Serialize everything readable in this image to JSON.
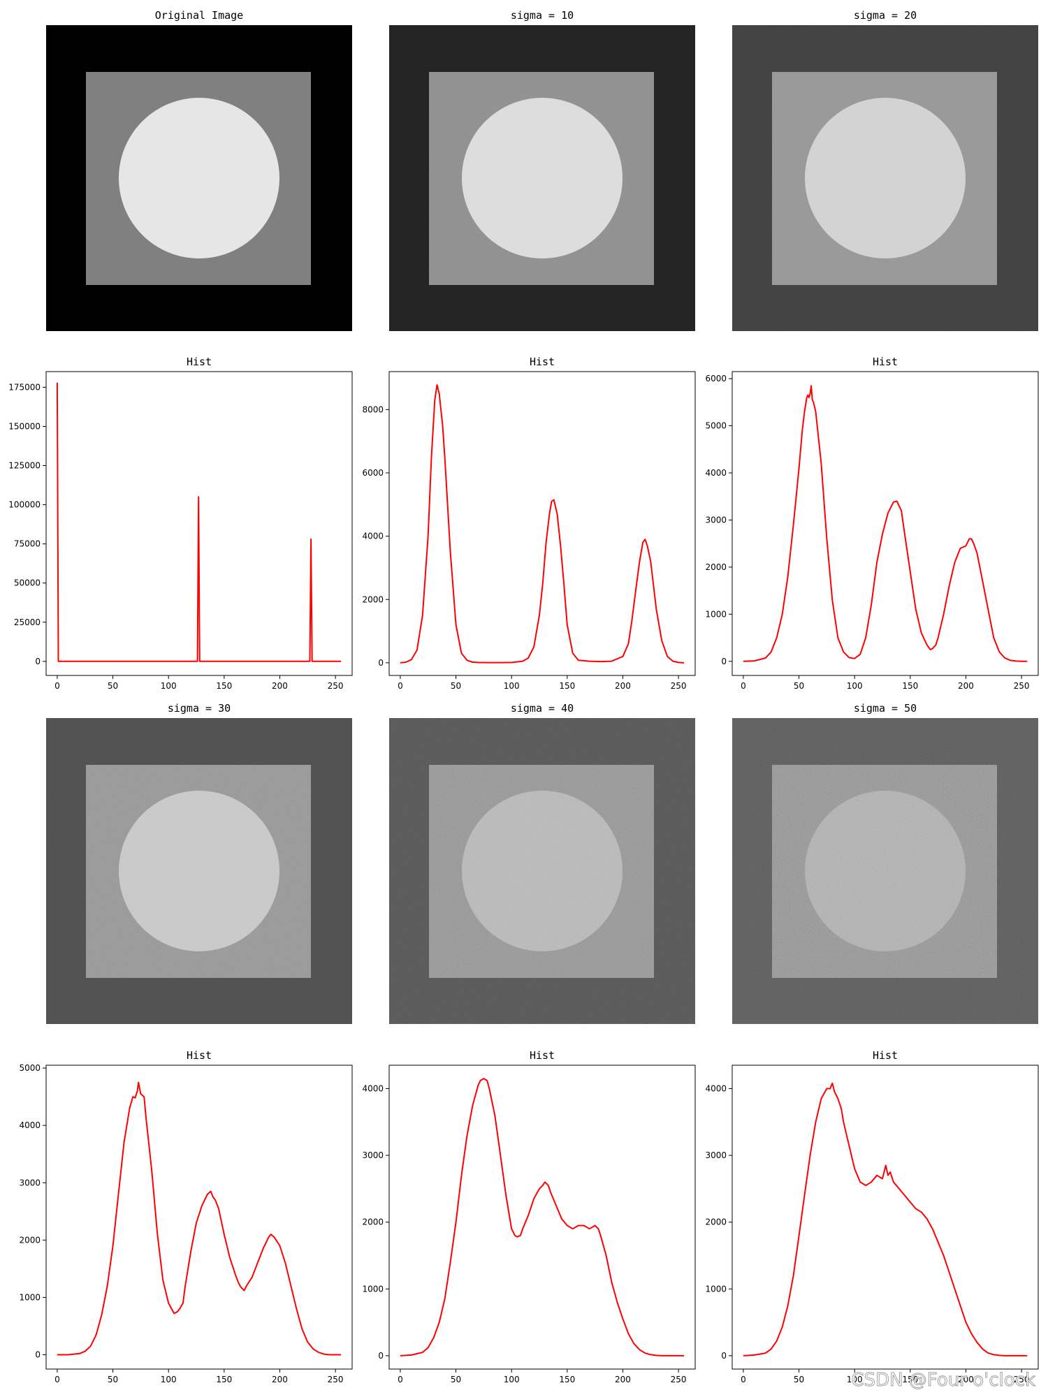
{
  "figure": {
    "background": "#ffffff"
  },
  "noise_panels": [
    {
      "title": "Original Image",
      "sigma": 0,
      "bg_gray": 0,
      "square_gray": 128,
      "circle_gray": 230
    },
    {
      "title": "sigma = 10",
      "sigma": 10,
      "bg_gray": 33,
      "square_gray": 136,
      "circle_gray": 218
    },
    {
      "title": "sigma = 20",
      "sigma": 20,
      "bg_gray": 60,
      "square_gray": 140,
      "circle_gray": 205
    },
    {
      "title": "sigma = 30",
      "sigma": 30,
      "bg_gray": 72,
      "square_gray": 138,
      "circle_gray": 192
    },
    {
      "title": "sigma = 40",
      "sigma": 40,
      "bg_gray": 78,
      "square_gray": 134,
      "circle_gray": 172
    },
    {
      "title": "sigma = 50",
      "sigma": 50,
      "bg_gray": 82,
      "square_gray": 130,
      "circle_gray": 160
    }
  ],
  "chart_data": [
    {
      "type": "line",
      "title": "Hist",
      "color": "#ff0000",
      "xlim": [
        -10,
        265
      ],
      "ylim": [
        -9000,
        185000
      ],
      "xticks": [
        0,
        50,
        100,
        150,
        200,
        250
      ],
      "yticks": [
        0,
        25000,
        50000,
        75000,
        100000,
        125000,
        150000,
        175000
      ],
      "x": [
        0,
        1,
        2,
        126,
        127,
        128,
        129,
        227,
        228,
        229,
        230,
        255
      ],
      "y": [
        178000,
        0,
        0,
        0,
        105000,
        0,
        0,
        0,
        78000,
        0,
        0,
        0
      ]
    },
    {
      "type": "line",
      "title": "Hist",
      "color": "#ff0000",
      "xlim": [
        -10,
        265
      ],
      "ylim": [
        -400,
        9200
      ],
      "xticks": [
        0,
        50,
        100,
        150,
        200,
        250
      ],
      "yticks": [
        0,
        2000,
        4000,
        6000,
        8000
      ],
      "x": [
        0,
        5,
        10,
        15,
        20,
        25,
        28,
        31,
        33,
        35,
        38,
        40,
        45,
        50,
        55,
        60,
        65,
        70,
        80,
        90,
        100,
        110,
        115,
        120,
        125,
        128,
        131,
        134,
        136,
        138,
        141,
        144,
        147,
        150,
        155,
        160,
        170,
        180,
        190,
        200,
        205,
        208,
        212,
        215,
        218,
        220,
        222,
        225,
        230,
        235,
        240,
        245,
        250,
        255
      ],
      "y": [
        0,
        20,
        100,
        400,
        1500,
        4000,
        6500,
        8300,
        8780,
        8500,
        7500,
        6500,
        3500,
        1200,
        300,
        80,
        20,
        10,
        5,
        5,
        10,
        50,
        150,
        500,
        1500,
        2500,
        3800,
        4700,
        5100,
        5150,
        4700,
        3700,
        2500,
        1200,
        300,
        80,
        50,
        40,
        50,
        200,
        600,
        1300,
        2400,
        3200,
        3800,
        3900,
        3700,
        3200,
        1700,
        700,
        200,
        50,
        10,
        0
      ]
    },
    {
      "type": "line",
      "title": "Hist",
      "color": "#ff0000",
      "xlim": [
        -10,
        265
      ],
      "ylim": [
        -300,
        6150
      ],
      "xticks": [
        0,
        50,
        100,
        150,
        200,
        250
      ],
      "yticks": [
        0,
        1000,
        2000,
        3000,
        4000,
        5000,
        6000
      ],
      "x": [
        0,
        10,
        20,
        25,
        30,
        35,
        40,
        45,
        50,
        53,
        55,
        57,
        58,
        59,
        60,
        61,
        62,
        63,
        65,
        70,
        75,
        80,
        85,
        90,
        95,
        100,
        105,
        110,
        115,
        120,
        125,
        130,
        135,
        138,
        140,
        142,
        145,
        150,
        155,
        160,
        165,
        168,
        170,
        173,
        175,
        180,
        185,
        190,
        195,
        200,
        203,
        205,
        207,
        210,
        215,
        220,
        225,
        230,
        235,
        240,
        245,
        250,
        255
      ],
      "y": [
        0,
        10,
        70,
        200,
        500,
        1000,
        1800,
        2900,
        4100,
        4900,
        5300,
        5600,
        5650,
        5600,
        5680,
        5850,
        5550,
        5500,
        5300,
        4200,
        2600,
        1300,
        500,
        200,
        80,
        60,
        150,
        500,
        1200,
        2100,
        2700,
        3150,
        3380,
        3400,
        3300,
        3200,
        2700,
        1900,
        1100,
        600,
        350,
        250,
        270,
        350,
        500,
        1000,
        1600,
        2100,
        2400,
        2450,
        2600,
        2600,
        2500,
        2300,
        1700,
        1100,
        500,
        200,
        70,
        20,
        5,
        0,
        0
      ]
    },
    {
      "type": "line",
      "title": "Hist",
      "color": "#ff0000",
      "xlim": [
        -10,
        265
      ],
      "ylim": [
        -250,
        5050
      ],
      "xticks": [
        0,
        50,
        100,
        150,
        200,
        250
      ],
      "yticks": [
        0,
        1000,
        2000,
        3000,
        4000,
        5000
      ],
      "x": [
        0,
        10,
        20,
        25,
        30,
        35,
        40,
        45,
        50,
        55,
        60,
        65,
        68,
        70,
        72,
        73,
        75,
        78,
        80,
        85,
        90,
        95,
        100,
        105,
        108,
        110,
        113,
        115,
        120,
        125,
        130,
        135,
        138,
        140,
        142,
        145,
        150,
        155,
        160,
        163,
        165,
        168,
        170,
        175,
        180,
        185,
        190,
        192,
        195,
        200,
        205,
        210,
        215,
        220,
        225,
        230,
        235,
        240,
        245,
        250,
        255
      ],
      "y": [
        0,
        0,
        20,
        60,
        150,
        350,
        700,
        1200,
        1900,
        2800,
        3700,
        4300,
        4500,
        4480,
        4600,
        4750,
        4550,
        4500,
        4100,
        3200,
        2100,
        1300,
        900,
        720,
        750,
        800,
        900,
        1200,
        1800,
        2300,
        2600,
        2800,
        2850,
        2750,
        2700,
        2550,
        2100,
        1700,
        1400,
        1250,
        1180,
        1120,
        1200,
        1350,
        1600,
        1850,
        2050,
        2100,
        2050,
        1900,
        1600,
        1200,
        800,
        450,
        220,
        100,
        40,
        10,
        0,
        0,
        0
      ]
    },
    {
      "type": "line",
      "title": "Hist",
      "color": "#ff0000",
      "xlim": [
        -10,
        265
      ],
      "ylim": [
        -200,
        4350
      ],
      "xticks": [
        0,
        50,
        100,
        150,
        200,
        250
      ],
      "yticks": [
        0,
        1000,
        2000,
        3000,
        4000
      ],
      "x": [
        0,
        10,
        20,
        25,
        30,
        35,
        40,
        45,
        50,
        55,
        60,
        65,
        70,
        72,
        75,
        78,
        80,
        85,
        90,
        95,
        100,
        103,
        105,
        108,
        110,
        115,
        120,
        125,
        128,
        130,
        133,
        135,
        140,
        145,
        150,
        155,
        160,
        165,
        170,
        175,
        178,
        180,
        185,
        190,
        195,
        200,
        205,
        210,
        215,
        220,
        225,
        230,
        235,
        240,
        245,
        250,
        255
      ],
      "y": [
        0,
        10,
        50,
        120,
        270,
        500,
        850,
        1400,
        2000,
        2700,
        3300,
        3750,
        4050,
        4120,
        4150,
        4120,
        4000,
        3600,
        3000,
        2400,
        1900,
        1800,
        1780,
        1800,
        1900,
        2100,
        2350,
        2500,
        2550,
        2600,
        2550,
        2450,
        2250,
        2050,
        1950,
        1900,
        1950,
        1950,
        1900,
        1950,
        1900,
        1800,
        1500,
        1100,
        800,
        550,
        330,
        180,
        90,
        40,
        15,
        5,
        0,
        0,
        0,
        0,
        0
      ]
    },
    {
      "type": "line",
      "title": "Hist",
      "color": "#ff0000",
      "xlim": [
        -10,
        265
      ],
      "ylim": [
        -200,
        4350
      ],
      "xticks": [
        0,
        50,
        100,
        150,
        200,
        250
      ],
      "yticks": [
        0,
        1000,
        2000,
        3000,
        4000
      ],
      "x": [
        0,
        10,
        20,
        25,
        30,
        35,
        40,
        45,
        50,
        55,
        60,
        65,
        70,
        75,
        78,
        80,
        82,
        85,
        88,
        90,
        95,
        100,
        105,
        110,
        115,
        120,
        125,
        128,
        130,
        132,
        135,
        140,
        145,
        150,
        155,
        160,
        165,
        170,
        175,
        180,
        185,
        190,
        195,
        200,
        205,
        210,
        215,
        220,
        225,
        230,
        235,
        240,
        245,
        250,
        255
      ],
      "y": [
        0,
        10,
        40,
        100,
        220,
        430,
        750,
        1200,
        1800,
        2400,
        3000,
        3500,
        3850,
        4000,
        4000,
        4080,
        3950,
        3850,
        3700,
        3500,
        3150,
        2800,
        2600,
        2550,
        2600,
        2700,
        2650,
        2850,
        2700,
        2750,
        2600,
        2500,
        2400,
        2300,
        2200,
        2150,
        2050,
        1900,
        1700,
        1500,
        1250,
        1000,
        750,
        500,
        330,
        200,
        100,
        40,
        15,
        5,
        0,
        0,
        0,
        0,
        0
      ]
    }
  ],
  "watermark": "CSDN @Four o'clock"
}
